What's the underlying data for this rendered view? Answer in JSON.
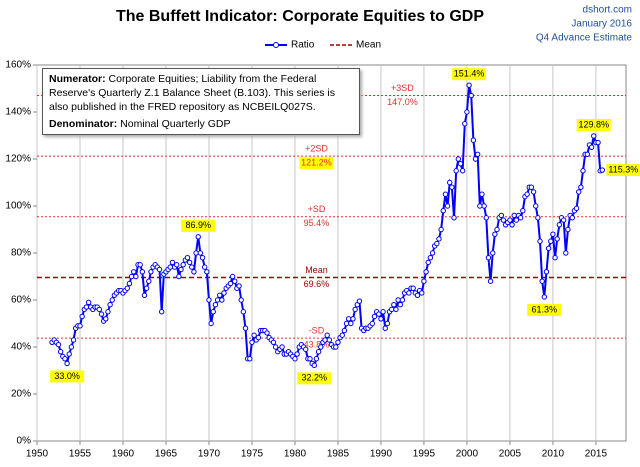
{
  "chart_data": {
    "type": "line",
    "title": "The Buffett Indicator: Corporate Equities to GDP",
    "source": "dshort.com",
    "date": "January 2016",
    "subtitle": "Q4 Advance Estimate",
    "xlim": [
      1950,
      2018.5
    ],
    "xticks": [
      1950,
      1955,
      1960,
      1965,
      1970,
      1975,
      1980,
      1985,
      1990,
      1995,
      2000,
      2005,
      2010,
      2015
    ],
    "ylim": [
      0,
      160
    ],
    "yticks": [
      {
        "value": 0,
        "label": "0%"
      },
      {
        "value": 20,
        "label": "20%"
      },
      {
        "value": 40,
        "label": "40%"
      },
      {
        "value": 60,
        "label": "60%"
      },
      {
        "value": 80,
        "label": "80%"
      },
      {
        "value": 100,
        "label": "100%"
      },
      {
        "value": 120,
        "label": "120%"
      },
      {
        "value": 140,
        "label": "140%"
      },
      {
        "value": 160,
        "label": "160%"
      }
    ],
    "grid": "x",
    "series": [
      {
        "name": "Ratio",
        "color": "#0000ff",
        "x": [
          1951.75,
          1952,
          1952.25,
          1952.5,
          1952.75,
          1953,
          1953.25,
          1953.5,
          1953.75,
          1954,
          1954.25,
          1954.5,
          1954.75,
          1955,
          1955.25,
          1955.5,
          1955.75,
          1956,
          1956.25,
          1956.5,
          1956.75,
          1957,
          1957.25,
          1957.5,
          1957.75,
          1958,
          1958.25,
          1958.5,
          1958.75,
          1959,
          1959.25,
          1959.5,
          1959.75,
          1960,
          1960.25,
          1960.5,
          1960.75,
          1961,
          1961.25,
          1961.5,
          1961.75,
          1962,
          1962.25,
          1962.5,
          1962.75,
          1963,
          1963.25,
          1963.5,
          1963.75,
          1964,
          1964.25,
          1964.5,
          1964.75,
          1965,
          1965.25,
          1965.5,
          1965.75,
          1966,
          1966.25,
          1966.5,
          1966.75,
          1967,
          1967.25,
          1967.5,
          1967.75,
          1968,
          1968.25,
          1968.5,
          1968.75,
          1969,
          1969.25,
          1969.5,
          1969.75,
          1970,
          1970.25,
          1970.5,
          1970.75,
          1971,
          1971.25,
          1971.5,
          1971.75,
          1972,
          1972.25,
          1972.5,
          1972.75,
          1973,
          1973.25,
          1973.5,
          1973.75,
          1974,
          1974.25,
          1974.5,
          1974.75,
          1975,
          1975.25,
          1975.5,
          1975.75,
          1976,
          1976.25,
          1976.5,
          1976.75,
          1977,
          1977.25,
          1977.5,
          1977.75,
          1978,
          1978.25,
          1978.5,
          1978.75,
          1979,
          1979.25,
          1979.5,
          1979.75,
          1980,
          1980.25,
          1980.5,
          1980.75,
          1981,
          1981.25,
          1981.5,
          1981.75,
          1982,
          1982.25,
          1982.5,
          1982.75,
          1983,
          1983.25,
          1983.5,
          1983.75,
          1984,
          1984.25,
          1984.5,
          1984.75,
          1985,
          1985.25,
          1985.5,
          1985.75,
          1986,
          1986.25,
          1986.5,
          1986.75,
          1987,
          1987.25,
          1987.5,
          1987.75,
          1988,
          1988.25,
          1988.5,
          1988.75,
          1989,
          1989.25,
          1989.5,
          1989.75,
          1990,
          1990.25,
          1990.5,
          1990.75,
          1991,
          1991.25,
          1991.5,
          1991.75,
          1992,
          1992.25,
          1992.5,
          1992.75,
          1993,
          1993.25,
          1993.5,
          1993.75,
          1994,
          1994.25,
          1994.5,
          1994.75,
          1995,
          1995.25,
          1995.5,
          1995.75,
          1996,
          1996.25,
          1996.5,
          1996.75,
          1997,
          1997.25,
          1997.5,
          1997.75,
          1998,
          1998.25,
          1998.5,
          1998.75,
          1999,
          1999.25,
          1999.5,
          1999.75,
          2000,
          2000.25,
          2000.5,
          2000.75,
          2001,
          2001.25,
          2001.5,
          2001.75,
          2002,
          2002.25,
          2002.5,
          2002.75,
          2003,
          2003.25,
          2003.5,
          2003.75,
          2004,
          2004.25,
          2004.5,
          2004.75,
          2005,
          2005.25,
          2005.5,
          2005.75,
          2006,
          2006.25,
          2006.5,
          2006.75,
          2007,
          2007.25,
          2007.5,
          2007.75,
          2008,
          2008.25,
          2008.5,
          2008.75,
          2009,
          2009.25,
          2009.5,
          2009.75,
          2010,
          2010.25,
          2010.5,
          2010.75,
          2011,
          2011.25,
          2011.5,
          2011.75,
          2012,
          2012.25,
          2012.5,
          2012.75,
          2013,
          2013.25,
          2013.5,
          2013.75,
          2014,
          2014.25,
          2014.5,
          2014.75,
          2015,
          2015.25,
          2015.5,
          2015.75
        ],
        "values": [
          42,
          43,
          42,
          41,
          38,
          36,
          35,
          33,
          37,
          40,
          43,
          48,
          49,
          49,
          53,
          56,
          57,
          59,
          57,
          56,
          57,
          57,
          56,
          54,
          51,
          52,
          55,
          58,
          60,
          62,
          63,
          64,
          64,
          63,
          64,
          65,
          67,
          70,
          72,
          70,
          75,
          75,
          72,
          62,
          65,
          68,
          72,
          74,
          75,
          74,
          73,
          55,
          71,
          72,
          73,
          74,
          76,
          74,
          75,
          70,
          73,
          75,
          77,
          78,
          76,
          74,
          72,
          80,
          86.9,
          80,
          78,
          74,
          72,
          60,
          50,
          55,
          58,
          60,
          62,
          60,
          63,
          65,
          66,
          67,
          70,
          68,
          65,
          66,
          60,
          55,
          48,
          35,
          35,
          42,
          45,
          43,
          44,
          47,
          47,
          47,
          46,
          44,
          43,
          42,
          40,
          38,
          39,
          40,
          37,
          37,
          38,
          37,
          36,
          35,
          37,
          40,
          41,
          40,
          39,
          35,
          35,
          33,
          32.2,
          35,
          38,
          40,
          42,
          43,
          45,
          43,
          41,
          40,
          40,
          42,
          44,
          45,
          47,
          50,
          52,
          50,
          52,
          56,
          58,
          59.5,
          48,
          47,
          48,
          48,
          49,
          50,
          53,
          55,
          54,
          52,
          55,
          48,
          50,
          55,
          56,
          58,
          56,
          60,
          58,
          60,
          63,
          64,
          63,
          65,
          65,
          63,
          62,
          64,
          63,
          68,
          72,
          76,
          78,
          80,
          83,
          84,
          86,
          90,
          98,
          105,
          100,
          110,
          108,
          95,
          115,
          120,
          118,
          115,
          135,
          140,
          151.4,
          147,
          128,
          120,
          122,
          100,
          105,
          100,
          95,
          78,
          68,
          80,
          88,
          90,
          95,
          96,
          94,
          92,
          93,
          94,
          92,
          96,
          94,
          96,
          95,
          98,
          104,
          105,
          108,
          108,
          106,
          100,
          95,
          85,
          68,
          61.3,
          72,
          82,
          85,
          88,
          78,
          86,
          92,
          95,
          94,
          80,
          90,
          96,
          95,
          98,
          99,
          106,
          108,
          115,
          122,
          122,
          126,
          125,
          129.8,
          127,
          127,
          115,
          115.3
        ]
      }
    ],
    "reference_lines": [
      {
        "name": "Mean",
        "value": 69.6,
        "label": "69.6%",
        "color": "#a00000",
        "style": "dashed"
      },
      {
        "name": "+SD",
        "value": 95.4,
        "label": "95.4%",
        "color": "#e03030",
        "style": "dotted"
      },
      {
        "name": "+2SD",
        "value": 121.2,
        "label": "121.2%",
        "color": "#e03030",
        "style": "dotted",
        "highlight": true
      },
      {
        "name": "+3SD",
        "value": 147.0,
        "label": "147.0%",
        "color": "#e03030",
        "style": "dotted"
      },
      {
        "name": "-SD",
        "value": 43.8,
        "label": "43.8%",
        "color": "#e03030",
        "style": "dotted"
      }
    ],
    "annotations": [
      {
        "x": 2000.25,
        "y": 151.4,
        "label": "151.4%",
        "position": "above"
      },
      {
        "x": 2014.75,
        "y": 129.8,
        "label": "129.8%",
        "position": "above"
      },
      {
        "x": 2015.75,
        "y": 115.3,
        "label": "115.3%",
        "position": "right"
      },
      {
        "x": 1968.75,
        "y": 86.9,
        "label": "86.9%",
        "position": "above"
      },
      {
        "x": 1953.5,
        "y": 33,
        "label": "33.0%",
        "position": "below"
      },
      {
        "x": 1982.25,
        "y": 32.2,
        "label": "32.2%",
        "position": "below"
      },
      {
        "x": 2009,
        "y": 61.3,
        "label": "61.3%",
        "position": "below"
      }
    ],
    "note": {
      "numerator_label": "Numerator:",
      "numerator": "Corporate Equities; Liability from the Federal Reserve's Quarterly Z.1 Balance Sheet (B.103). This series is also published in the FRED repository  as NCBEILQ027S.",
      "denominator_label": "Denominator:",
      "denominator": "Nominal Quarterly GDP"
    }
  }
}
